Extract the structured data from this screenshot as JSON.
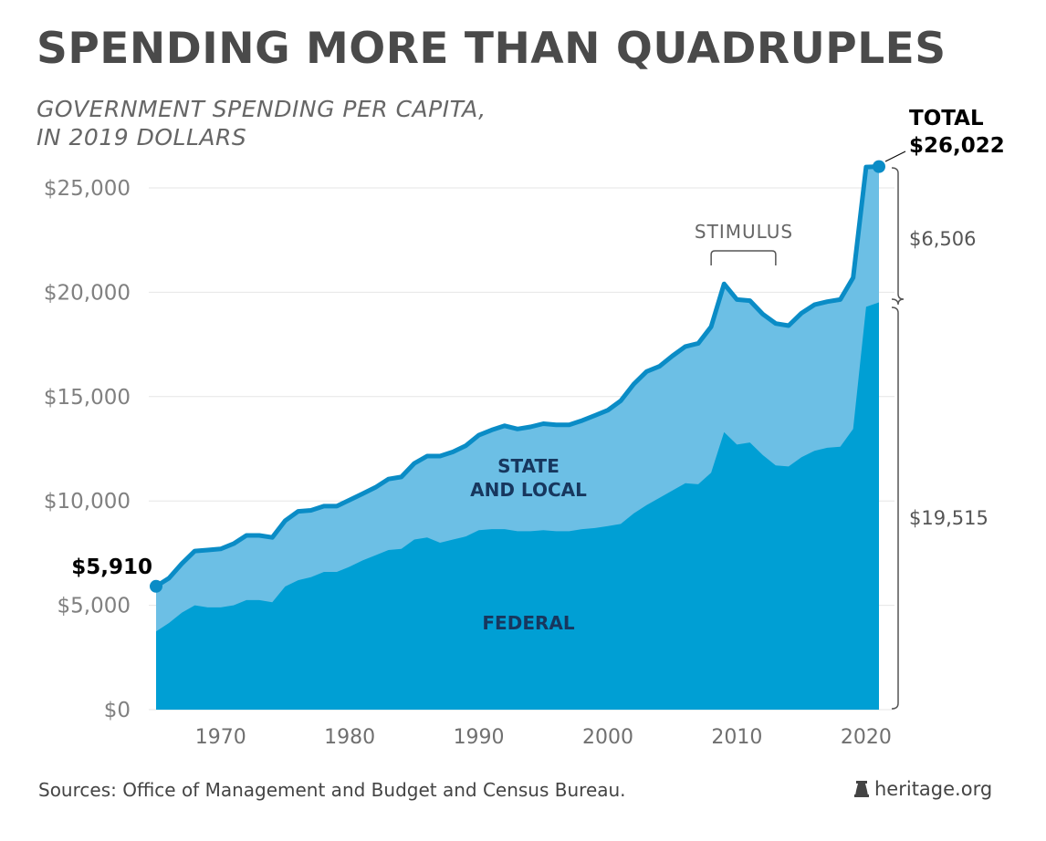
{
  "header": {
    "title": "SPENDING MORE THAN QUADRUPLES",
    "subtitle_line1": "GOVERNMENT SPENDING PER CAPITA,",
    "subtitle_line2": "IN 2019 DOLLARS"
  },
  "footer": {
    "sources": "Sources: Office of Management and Budget and Census Bureau.",
    "brand": "heritage.org",
    "brand_icon": "liberty-bell-icon"
  },
  "colors": {
    "federal": "#009fd4",
    "state_local": "#6cbfe5",
    "total_line": "#0a8cc6",
    "gridline": "#e6e6e6",
    "bracket": "#555555"
  },
  "chart_data": {
    "type": "area",
    "stacked": true,
    "title": "SPENDING MORE THAN QUADRUPLES",
    "subtitle": "GOVERNMENT SPENDING PER CAPITA, IN 2019 DOLLARS",
    "xlabel": "",
    "ylabel": "",
    "xlim": [
      1965,
      2021
    ],
    "ylim": [
      0,
      25000
    ],
    "grid": true,
    "legend": "inline-labels",
    "y_ticks": [
      0,
      5000,
      10000,
      15000,
      20000,
      25000
    ],
    "y_tick_labels": [
      "$0",
      "$5,000",
      "$10,000",
      "$15,000",
      "$20,000",
      "$25,000"
    ],
    "x_ticks": [
      1970,
      1980,
      1990,
      2000,
      2010,
      2020
    ],
    "x_tick_labels": [
      "1970",
      "1980",
      "1990",
      "2000",
      "2010",
      "2020"
    ],
    "x": [
      1965,
      1966,
      1967,
      1968,
      1969,
      1970,
      1971,
      1972,
      1973,
      1974,
      1975,
      1976,
      1977,
      1978,
      1979,
      1980,
      1981,
      1982,
      1983,
      1984,
      1985,
      1986,
      1987,
      1988,
      1989,
      1990,
      1991,
      1992,
      1993,
      1994,
      1995,
      1996,
      1997,
      1998,
      1999,
      2000,
      2001,
      2002,
      2003,
      2004,
      2005,
      2006,
      2007,
      2008,
      2009,
      2010,
      2011,
      2012,
      2013,
      2014,
      2015,
      2016,
      2017,
      2018,
      2019,
      2020,
      2021
    ],
    "series": [
      {
        "name": "FEDERAL",
        "values": [
          3750,
          4150,
          4650,
          5000,
          4900,
          4900,
          5000,
          5250,
          5250,
          5150,
          5900,
          6200,
          6350,
          6600,
          6600,
          6850,
          7150,
          7400,
          7650,
          7700,
          8150,
          8250,
          8000,
          8150,
          8300,
          8600,
          8650,
          8650,
          8550,
          8550,
          8600,
          8550,
          8550,
          8650,
          8700,
          8800,
          8900,
          9400,
          9800,
          10150,
          10500,
          10850,
          10800,
          11350,
          13300,
          12700,
          12800,
          12200,
          11700,
          11650,
          12100,
          12400,
          12550,
          12600,
          13450,
          19300,
          19515
        ]
      },
      {
        "name": "STATE AND LOCAL",
        "label_line1": "STATE",
        "label_line2": "AND LOCAL",
        "total_values": [
          5910,
          6300,
          7000,
          7600,
          7650,
          7700,
          7950,
          8350,
          8350,
          8250,
          9050,
          9500,
          9550,
          9750,
          9750,
          10050,
          10350,
          10650,
          11050,
          11150,
          11800,
          12150,
          12150,
          12350,
          12650,
          13150,
          13400,
          13600,
          13450,
          13550,
          13700,
          13650,
          13650,
          13850,
          14100,
          14350,
          14800,
          15600,
          16200,
          16450,
          16950,
          17400,
          17550,
          18350,
          20400,
          19650,
          19600,
          18950,
          18500,
          18400,
          19000,
          19400,
          19550,
          19650,
          20700,
          26000,
          26022
        ]
      }
    ],
    "annotations": {
      "start_value": "$5,910",
      "end_total_label": "TOTAL",
      "end_total_value": "$26,022",
      "end_state_local": "$6,506",
      "end_federal": "$19,515",
      "stimulus_label": "STIMULUS",
      "stimulus_range": [
        2008,
        2013
      ]
    }
  }
}
